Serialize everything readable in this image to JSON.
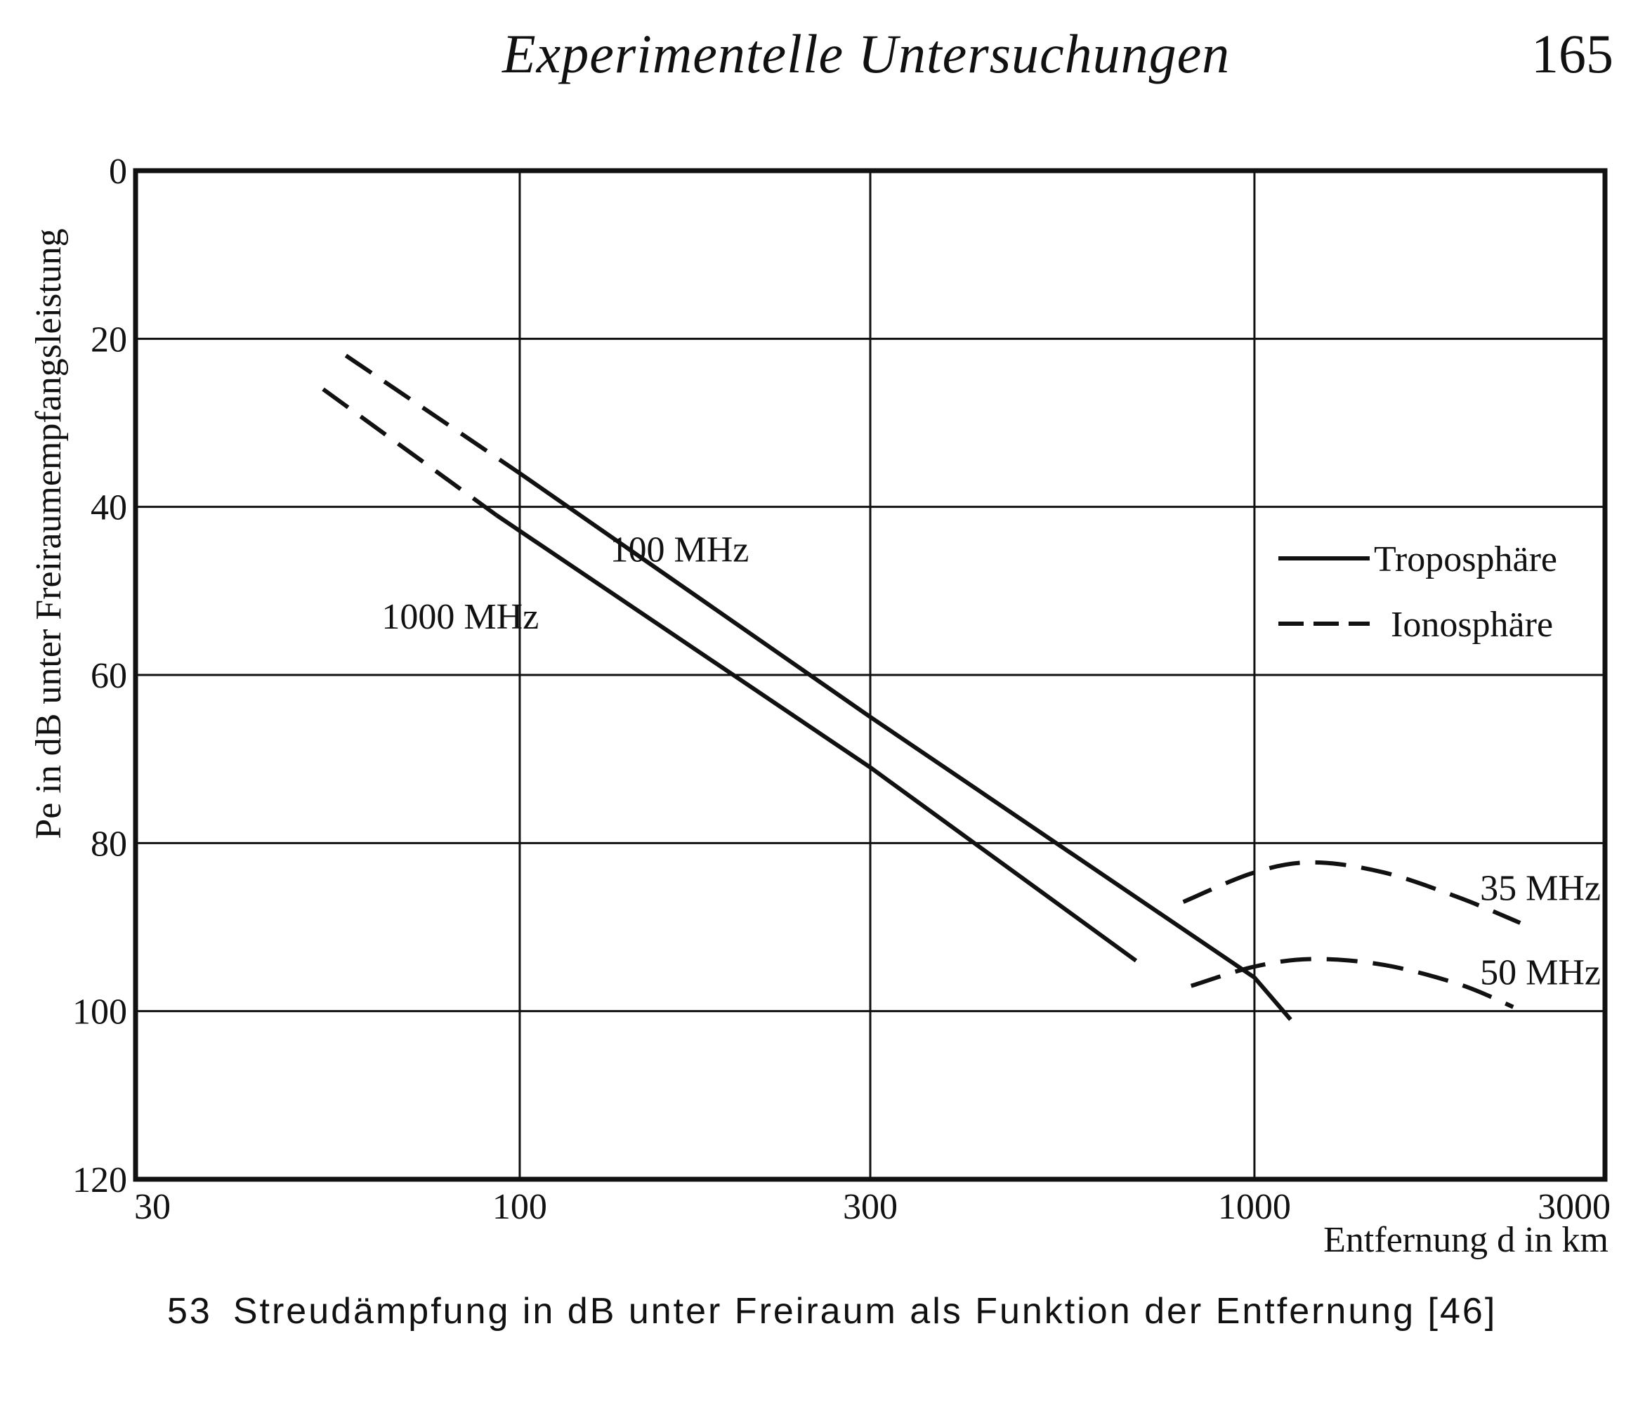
{
  "page": {
    "running_title": "Experimentelle  Untersuchungen",
    "page_number": "165"
  },
  "caption": {
    "number": "53",
    "text": "Streudämpfung in dB unter Freiraum als Funktion der Entfernung [46]"
  },
  "chart_data": {
    "type": "line",
    "title": "",
    "xlabel": "Entfernung d in km",
    "ylabel": "Pe in dB unter Freiraumempfangsleistung",
    "xscale": "log",
    "xlim": [
      30,
      3000
    ],
    "ylim": [
      0,
      120
    ],
    "y_inverted": true,
    "xticks": [
      "30",
      "100",
      "300",
      "1000",
      "3000"
    ],
    "yticks": [
      "0",
      "20",
      "40",
      "60",
      "80",
      "100",
      "120"
    ],
    "grid": true,
    "legend": {
      "placement": "right",
      "entries": [
        {
          "label": "Troposphäre",
          "style": "solid"
        },
        {
          "label": "Ionosphäre",
          "style": "dashed"
        }
      ]
    },
    "series": [
      {
        "name": "100 MHz",
        "points": [
          {
            "x": 58,
            "y": 22,
            "style": "dashed"
          },
          {
            "x": 100,
            "y": 36,
            "style": "dashed"
          },
          {
            "x": 100,
            "y": 36,
            "style": "solid"
          },
          {
            "x": 300,
            "y": 65,
            "style": "solid"
          },
          {
            "x": 1000,
            "y": 96,
            "style": "solid"
          },
          {
            "x": 1120,
            "y": 101,
            "style": "solid"
          }
        ]
      },
      {
        "name": "1000 MHz",
        "points": [
          {
            "x": 54,
            "y": 26,
            "style": "dashed"
          },
          {
            "x": 93,
            "y": 41,
            "style": "dashed"
          },
          {
            "x": 93,
            "y": 41,
            "style": "solid"
          },
          {
            "x": 300,
            "y": 71,
            "style": "solid"
          },
          {
            "x": 690,
            "y": 94,
            "style": "solid"
          }
        ]
      },
      {
        "name": "35 MHz",
        "points": [
          {
            "x": 800,
            "y": 87,
            "style": "dashed"
          },
          {
            "x": 1000,
            "y": 83.5,
            "style": "dashed"
          },
          {
            "x": 1200,
            "y": 82.3,
            "style": "dashed"
          },
          {
            "x": 1500,
            "y": 83.5,
            "style": "dashed"
          },
          {
            "x": 1900,
            "y": 86.5,
            "style": "dashed"
          },
          {
            "x": 2300,
            "y": 89.5,
            "style": "dashed"
          }
        ]
      },
      {
        "name": "50 MHz",
        "points": [
          {
            "x": 820,
            "y": 97,
            "style": "dashed"
          },
          {
            "x": 1000,
            "y": 94.7,
            "style": "dashed"
          },
          {
            "x": 1200,
            "y": 93.8,
            "style": "dashed"
          },
          {
            "x": 1500,
            "y": 94.5,
            "style": "dashed"
          },
          {
            "x": 1900,
            "y": 96.8,
            "style": "dashed"
          },
          {
            "x": 2250,
            "y": 99.5,
            "style": "dashed"
          }
        ]
      }
    ],
    "annotations": [
      {
        "text": "100 MHz",
        "series": "100 MHz"
      },
      {
        "text": "1000 MHz",
        "series": "1000 MHz"
      },
      {
        "text": "35 MHz",
        "series": "35 MHz"
      },
      {
        "text": "50 MHz",
        "series": "50 MHz"
      }
    ],
    "colors": {
      "ink": "#111111",
      "background": "#ffffff"
    }
  }
}
